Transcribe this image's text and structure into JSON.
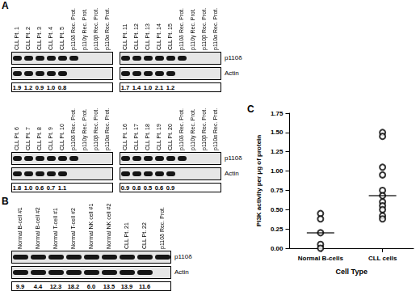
{
  "panel_A": {
    "label": "A",
    "bands": [
      "p110δ",
      "Actin"
    ],
    "blots": [
      {
        "lanes": [
          "CLL Pt. 1",
          "CLL Pt. 2",
          "CLL Pt. 3",
          "CLL Pt. 4",
          "CLL Pt. 5",
          "p110δ Rec. Prot.",
          "p110γ Rec. Prot.",
          "p110β Rec. Prot.",
          "p110α Rec. Prot."
        ],
        "values": [
          "1.9",
          "1.2",
          "0.9",
          "1.0",
          "0.8",
          null,
          null,
          null,
          null
        ]
      },
      {
        "lanes": [
          "CLL Pt. 11",
          "CLL Pt. 12",
          "CLL Pt. 13",
          "CLL Pt. 14",
          "CLL Pt. 15",
          "p110δ Rec. Prot.",
          "p110γ Rec. Prot.",
          "p110β Rec. Prot.",
          "p110α Rec. Prot."
        ],
        "values": [
          "1.7",
          "1.4",
          "1.0",
          "2.1",
          "1.2",
          null,
          null,
          null,
          null
        ]
      },
      {
        "lanes": [
          "CLL Pt. 6",
          "CLL Pt. 7",
          "CLL Pt. 8",
          "CLL Pt. 9",
          "CLL Pt. 10",
          "p110δ Rec. Prot.",
          "p110γ Rec. Prot.",
          "p110β Rec. Prot.",
          "p110α Rec. Prot."
        ],
        "values": [
          "1.8",
          "1.0",
          "0.6",
          "0.7",
          "1.1",
          null,
          null,
          null,
          null
        ]
      },
      {
        "lanes": [
          "CLL Pt. 16",
          "CLL Pt. 17",
          "CLL Pt. 18",
          "CLL Pt. 19",
          "CLL Pt. 20",
          "p110δ Rec. Prot.",
          "p110γ Rec. Prot.",
          "p110β Rec. Prot.",
          "p110α Rec. Prot."
        ],
        "values": [
          "0.9",
          "0.8",
          "0.5",
          "0.6",
          "0.9",
          null,
          null,
          null,
          null
        ]
      }
    ]
  },
  "panel_B": {
    "label": "B",
    "bands": [
      "p110δ",
      "Actin"
    ],
    "lanes": [
      "Normal B-cell #1",
      "Normal B-cell #2",
      "Normal T-cell #1",
      "Normal T-cell #2",
      "Normal NK cell #1",
      "Normal NK cell #2",
      "CLL Pt. 21",
      "CLL Pt. 22",
      "p110δ Rec. Prot."
    ],
    "values": [
      "9.9",
      "4.4",
      "12.3",
      "18.2",
      "6.0",
      "13.5",
      "13.9",
      "11.6",
      null
    ]
  },
  "panel_C": {
    "label": "C"
  },
  "chart_data": {
    "type": "scatter",
    "x_label": "Cell Type",
    "y_label": "PI3K activity per μg of protein",
    "categories": [
      "Normal B-cells",
      "CLL cells"
    ],
    "values": [
      [
        0.45,
        0.38,
        0.2,
        0.05,
        0.0
      ],
      [
        1.5,
        1.45,
        1.05,
        0.95,
        0.75,
        0.68,
        0.6,
        0.55,
        0.5,
        0.42,
        0.38
      ]
    ],
    "medians": [
      0.2,
      0.68
    ],
    "color": "#000000",
    "marker": "open_circle",
    "ylim": [
      0,
      1.75
    ],
    "yticks": [
      {
        "value": 0,
        "label": "0.00"
      },
      {
        "value": 0.25,
        "label": "0.25"
      },
      {
        "value": 0.5,
        "label": "0.50"
      },
      {
        "value": 0.75,
        "label": "0.75"
      },
      {
        "value": 1.0,
        "label": "1.00"
      },
      {
        "value": 1.25,
        "label": "1.25"
      },
      {
        "value": 1.5,
        "label": "1.50"
      },
      {
        "value": 1.75,
        "label": "1.75"
      }
    ],
    "grid": false
  }
}
